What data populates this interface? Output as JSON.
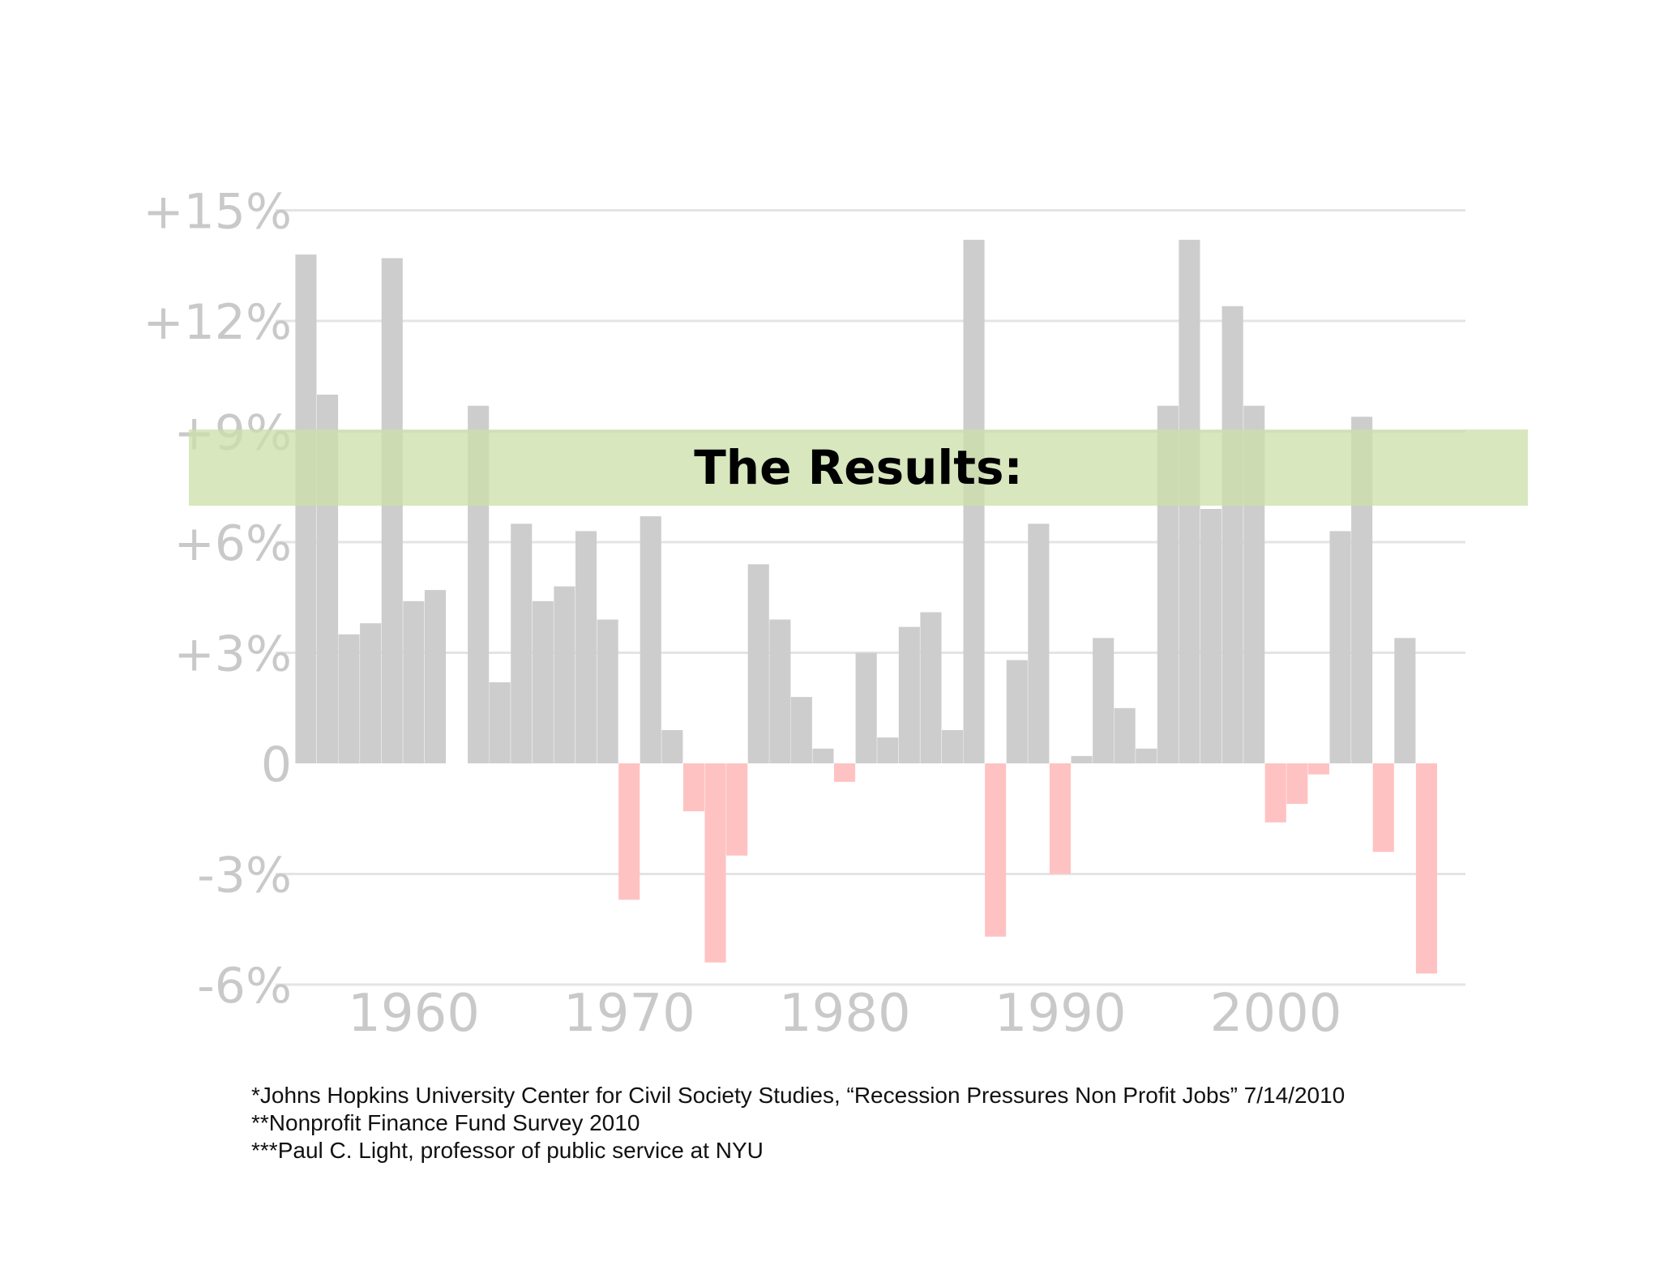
{
  "banner": {
    "title": "The Results:"
  },
  "footnotes": [
    "*Johns Hopkins University Center for Civil Society Studies, “Recession Pressures Non Profit Jobs”  7/14/2010",
    "**Nonprofit Finance Fund Survey 2010",
    "***Paul C. Light, professor of public service at NYU"
  ],
  "colors": {
    "positive": "#cdcdcd",
    "negative": "#ffc2c2",
    "banner": "#cbdfa8",
    "text": "#c9c9c9"
  },
  "chart_data": {
    "type": "bar",
    "title": "",
    "xlabel": "",
    "ylabel": "",
    "ylim": [
      -6,
      15
    ],
    "xlim": [
      1954.9,
      2008.8
    ],
    "grid": true,
    "ytick_values": [
      15,
      12,
      9,
      6,
      3,
      0,
      -3,
      -6
    ],
    "ytick_labels": [
      "+15%",
      "+12%",
      "+9%",
      "+6%",
      "+3%",
      "0",
      "-3%",
      "-6%"
    ],
    "xtick_values": [
      1960,
      1970,
      1980,
      1990,
      2000
    ],
    "xtick_labels": [
      "1960",
      "1970",
      "1980",
      "1990",
      "2000"
    ],
    "categories": [
      1955,
      1956,
      1957,
      1958,
      1959,
      1960,
      1961,
      1962,
      1963,
      1964,
      1965,
      1966,
      1967,
      1968,
      1969,
      1970,
      1971,
      1972,
      1973,
      1974,
      1975,
      1976,
      1977,
      1978,
      1979,
      1980,
      1981,
      1982,
      1983,
      1984,
      1985,
      1986,
      1987,
      1988,
      1989,
      1990,
      1991,
      1992,
      1993,
      1994,
      1995,
      1996,
      1997,
      1998,
      1999,
      2000,
      2001,
      2002,
      2003,
      2004,
      2005,
      2006,
      2007
    ],
    "values": [
      13.8,
      10,
      3.5,
      3.8,
      13.7,
      4.4,
      4.7,
      0,
      9.7,
      2.2,
      6.5,
      4.4,
      4.8,
      6.3,
      3.9,
      -3.7,
      6.7,
      0.9,
      -1.3,
      -5.4,
      -2.5,
      5.4,
      3.9,
      1.8,
      0.4,
      -0.5,
      3.0,
      0.7,
      3.7,
      4.1,
      0.9,
      14.2,
      -4.7,
      2.8,
      6.5,
      -3.0,
      0.2,
      3.4,
      1.5,
      0.4,
      9.7,
      14.2,
      6.9,
      12.4,
      9.7,
      -1.6,
      -1.1,
      -0.3,
      6.3,
      9.4,
      -2.4,
      3.4,
      -5.7
    ]
  }
}
